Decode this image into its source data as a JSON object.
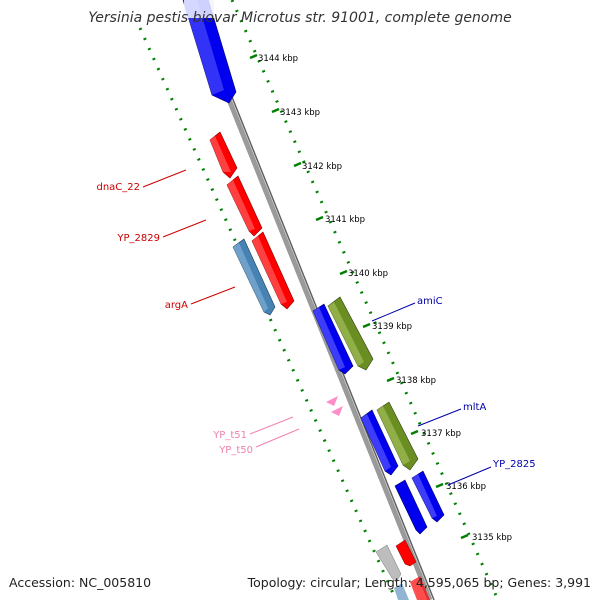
{
  "header": {
    "title": "Yersinia pestis biovar Microtus str. 91001, complete genome"
  },
  "footer": {
    "accession": "Accession: NC_005810",
    "summary": "Topology: circular; Length: 4,595,065 bp; Genes: 3,991"
  },
  "colors": {
    "forward_gene": "#ff0000",
    "reverse_gene": "#0000ff",
    "steelblue_gene": "#4682b4",
    "olive_gene": "#6b8e23",
    "trna": "#ff8ec8",
    "grey_gene": "#bdbdbd",
    "label_forward": "#cc0000",
    "label_reverse": "#0000aa",
    "label_trna": "#f080b0",
    "ruler": "#008000",
    "backbone": "#808080"
  },
  "scale": {
    "unit": "kbp",
    "ticks": [
      {
        "label": "3144 kbp"
      },
      {
        "label": "3143 kbp"
      },
      {
        "label": "3142 kbp"
      },
      {
        "label": "3141 kbp"
      },
      {
        "label": "3140 kbp"
      },
      {
        "label": "3139 kbp"
      },
      {
        "label": "3138 kbp"
      },
      {
        "label": "3137 kbp"
      },
      {
        "label": "3136 kbp"
      },
      {
        "label": "3135 kbp"
      }
    ]
  },
  "genes": [
    {
      "label": "dnaC_22",
      "strand": "forward"
    },
    {
      "label": "YP_2829",
      "strand": "forward"
    },
    {
      "label": "argA",
      "strand": "forward"
    },
    {
      "label": "amiC",
      "strand": "reverse"
    },
    {
      "label": "mltA",
      "strand": "reverse"
    },
    {
      "label": "YP_2825",
      "strand": "reverse"
    },
    {
      "label": "YP_t51",
      "strand": "trna"
    },
    {
      "label": "YP_t50",
      "strand": "trna"
    }
  ]
}
